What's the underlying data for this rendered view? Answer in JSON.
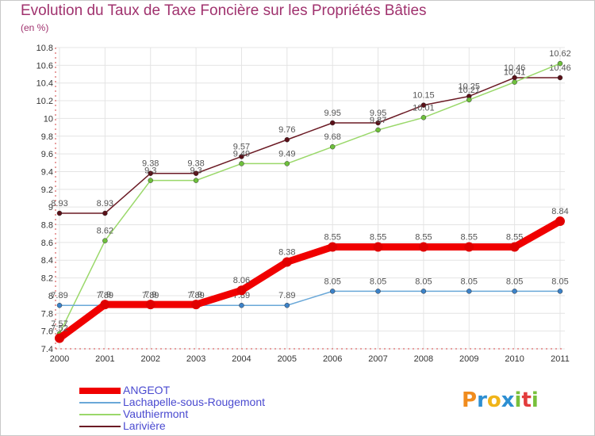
{
  "title": "Evolution du Taux de Taxe Foncière sur les Propriétés Bâties",
  "subtitle": "(en %)",
  "brand": {
    "letters": [
      "P",
      "r",
      "o",
      "x",
      "i",
      "t",
      "i"
    ],
    "colors": [
      "#f08c1e",
      "#2d8fd2",
      "#f0b419",
      "#2d8fd2",
      "#78c03c",
      "#e23c3c",
      "#78c03c"
    ]
  },
  "chart_data": {
    "type": "line",
    "title": "Evolution du Taux de Taxe Foncière sur les Propriétés Bâties",
    "ylabel": "(en %)",
    "ylim": [
      7.4,
      10.8
    ],
    "yticks": [
      "7.4",
      "7.6",
      "7.8",
      "8",
      "8.2",
      "8.4",
      "8.6",
      "8.8",
      "9",
      "9.2",
      "9.4",
      "9.6",
      "9.8",
      "10",
      "10.2",
      "10.4",
      "10.6",
      "10.8"
    ],
    "categories": [
      "2000",
      "2001",
      "2002",
      "2003",
      "2004",
      "2005",
      "2006",
      "2007",
      "2008",
      "2009",
      "2010",
      "2011"
    ],
    "grid": true,
    "series": [
      {
        "name": "Larivière",
        "color": "#6b1a24",
        "marker": "#5a1018",
        "values": [
          8.93,
          8.93,
          9.38,
          9.38,
          9.57,
          9.76,
          9.95,
          9.95,
          10.15,
          10.25,
          10.46,
          10.46
        ],
        "labels": [
          "8.93",
          "8.93",
          "9.38",
          "9.38",
          "9.57",
          "9.76",
          "9.95",
          "9.95",
          "10.15",
          "10.25",
          "10.46",
          "10.46"
        ]
      },
      {
        "name": "Vauthiermont",
        "color": "#9ad86a",
        "marker": "#6ec03c",
        "values": [
          7.57,
          8.62,
          9.3,
          9.3,
          9.49,
          9.49,
          9.68,
          9.87,
          10.01,
          10.21,
          10.41,
          10.62
        ],
        "labels": [
          "7.57",
          "8.62",
          "9.3",
          "9.3",
          "9.49",
          "9.49",
          "9.68",
          "9.87",
          "10.01",
          "10.21",
          "10.41",
          "10.62"
        ]
      },
      {
        "name": "Lachapelle-sous-Rougemont",
        "color": "#6aa8d8",
        "marker": "#3c82c8",
        "values": [
          7.89,
          7.89,
          7.89,
          7.89,
          7.89,
          7.89,
          8.05,
          8.05,
          8.05,
          8.05,
          8.05,
          8.05
        ],
        "labels": [
          "7.89",
          "7.89",
          "7.89",
          "7.89",
          "7.89",
          "7.89",
          "8.05",
          "8.05",
          "8.05",
          "8.05",
          "8.05",
          "8.05"
        ]
      },
      {
        "name": "ANGEOT",
        "color": "#f00000",
        "marker": "#e00000",
        "values": [
          7.52,
          7.9,
          7.9,
          7.9,
          8.06,
          8.38,
          8.55,
          8.55,
          8.55,
          8.55,
          8.55,
          8.84
        ],
        "labels": [
          "7.52",
          "7.9",
          "7.9",
          "7.9",
          "8.06",
          "8.38",
          "8.55",
          "8.55",
          "8.55",
          "8.55",
          "8.55",
          "8.84"
        ]
      }
    ],
    "legend_order": [
      "ANGEOT",
      "Lachapelle-sous-Rougemont",
      "Vauthiermont",
      "Larivière"
    ],
    "legend_position": "bottom-left"
  }
}
